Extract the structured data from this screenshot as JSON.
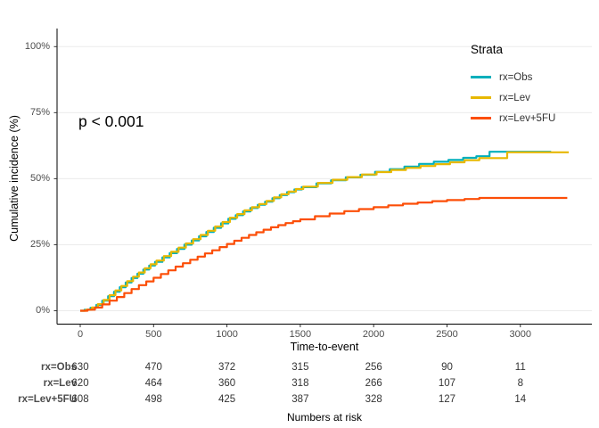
{
  "chart_data": {
    "type": "line",
    "subtype": "step-cumulative-incidence",
    "title": "",
    "xlabel": "Time-to-event",
    "ylabel": "Cumulative incidence (%)",
    "annotation": "p < 0.001",
    "legend_title": "Strata",
    "legend_position": "right",
    "grid": "horizontal-only",
    "x_ticks": [
      0,
      500,
      1000,
      1500,
      2000,
      2500,
      3000
    ],
    "y_ticks_percent": [
      0,
      25,
      50,
      75,
      100
    ],
    "y_tick_labels": [
      "0%",
      "25%",
      "50%",
      "75%",
      "100%"
    ],
    "xlim": [
      -170,
      3500
    ],
    "ylim_percent": [
      0,
      100
    ],
    "gridline_color": "#ebebeb",
    "axis_color": "#000000",
    "tick_label_color": "#4d4d4d",
    "series": [
      {
        "name": "rx=Obs",
        "color": "#00AFBB",
        "points": [
          [
            0,
            0
          ],
          [
            30,
            0.4
          ],
          [
            70,
            1.1
          ],
          [
            110,
            2.2
          ],
          [
            150,
            3.8
          ],
          [
            190,
            5.5
          ],
          [
            230,
            7.2
          ],
          [
            270,
            8.9
          ],
          [
            310,
            10.7
          ],
          [
            350,
            12.4
          ],
          [
            390,
            14
          ],
          [
            430,
            15.6
          ],
          [
            470,
            17.1
          ],
          [
            510,
            18.5
          ],
          [
            560,
            20.2
          ],
          [
            610,
            21.8
          ],
          [
            660,
            23.4
          ],
          [
            710,
            25
          ],
          [
            760,
            26.6
          ],
          [
            810,
            28.2
          ],
          [
            860,
            29.8
          ],
          [
            910,
            31.4
          ],
          [
            960,
            33.1
          ],
          [
            1010,
            34.8
          ],
          [
            1060,
            36.2
          ],
          [
            1110,
            37.6
          ],
          [
            1160,
            38.9
          ],
          [
            1210,
            40.1
          ],
          [
            1260,
            41.3
          ],
          [
            1310,
            42.6
          ],
          [
            1360,
            43.8
          ],
          [
            1410,
            44.9
          ],
          [
            1460,
            45.9
          ],
          [
            1510,
            46.8
          ],
          [
            1610,
            48.2
          ],
          [
            1710,
            49.4
          ],
          [
            1810,
            50.5
          ],
          [
            1910,
            51.5
          ],
          [
            2010,
            52.6
          ],
          [
            2110,
            53.6
          ],
          [
            2210,
            54.6
          ],
          [
            2310,
            55.6
          ],
          [
            2410,
            56.4
          ],
          [
            2510,
            57.1
          ],
          [
            2610,
            57.9
          ],
          [
            2700,
            58.5
          ],
          [
            2790,
            60.2
          ],
          [
            3210,
            60.2
          ]
        ]
      },
      {
        "name": "rx=Lev",
        "color": "#E7B800",
        "points": [
          [
            0,
            0
          ],
          [
            40,
            0.4
          ],
          [
            80,
            1.2
          ],
          [
            120,
            2.5
          ],
          [
            160,
            4.1
          ],
          [
            200,
            5.9
          ],
          [
            240,
            7.7
          ],
          [
            280,
            9.4
          ],
          [
            320,
            11.2
          ],
          [
            360,
            12.9
          ],
          [
            400,
            14.5
          ],
          [
            440,
            16.1
          ],
          [
            480,
            17.6
          ],
          [
            520,
            19
          ],
          [
            570,
            20.7
          ],
          [
            620,
            22.3
          ],
          [
            670,
            23.9
          ],
          [
            720,
            25.5
          ],
          [
            770,
            27.1
          ],
          [
            820,
            28.7
          ],
          [
            870,
            30.3
          ],
          [
            920,
            31.9
          ],
          [
            970,
            33.6
          ],
          [
            1020,
            35.2
          ],
          [
            1070,
            36.6
          ],
          [
            1120,
            38
          ],
          [
            1170,
            39.2
          ],
          [
            1220,
            40.4
          ],
          [
            1270,
            41.6
          ],
          [
            1320,
            42.9
          ],
          [
            1370,
            44.1
          ],
          [
            1420,
            45.1
          ],
          [
            1470,
            46.1
          ],
          [
            1520,
            47
          ],
          [
            1620,
            48.4
          ],
          [
            1720,
            49.6
          ],
          [
            1820,
            50.6
          ],
          [
            1920,
            51.6
          ],
          [
            2020,
            52.5
          ],
          [
            2120,
            53.3
          ],
          [
            2220,
            54.1
          ],
          [
            2320,
            54.8
          ],
          [
            2420,
            55.5
          ],
          [
            2520,
            56.2
          ],
          [
            2620,
            57
          ],
          [
            2720,
            57.8
          ],
          [
            2910,
            60
          ],
          [
            3330,
            60
          ]
        ]
      },
      {
        "name": "rx=Lev+5FU",
        "color": "#FC4E07",
        "points": [
          [
            0,
            0
          ],
          [
            50,
            0.4
          ],
          [
            100,
            1.2
          ],
          [
            150,
            2.4
          ],
          [
            200,
            3.8
          ],
          [
            250,
            5.2
          ],
          [
            300,
            6.7
          ],
          [
            350,
            8.2
          ],
          [
            400,
            9.7
          ],
          [
            450,
            11.1
          ],
          [
            500,
            12.5
          ],
          [
            550,
            13.9
          ],
          [
            600,
            15.3
          ],
          [
            650,
            16.7
          ],
          [
            700,
            18
          ],
          [
            750,
            19.3
          ],
          [
            800,
            20.5
          ],
          [
            850,
            21.7
          ],
          [
            900,
            22.9
          ],
          [
            950,
            24.1
          ],
          [
            1000,
            25.3
          ],
          [
            1050,
            26.5
          ],
          [
            1100,
            27.6
          ],
          [
            1150,
            28.7
          ],
          [
            1200,
            29.7
          ],
          [
            1250,
            30.7
          ],
          [
            1300,
            31.6
          ],
          [
            1350,
            32.4
          ],
          [
            1400,
            33.2
          ],
          [
            1450,
            33.9
          ],
          [
            1500,
            34.6
          ],
          [
            1600,
            35.8
          ],
          [
            1700,
            36.8
          ],
          [
            1800,
            37.7
          ],
          [
            1900,
            38.5
          ],
          [
            2000,
            39.2
          ],
          [
            2100,
            39.9
          ],
          [
            2200,
            40.5
          ],
          [
            2300,
            41
          ],
          [
            2400,
            41.5
          ],
          [
            2500,
            41.9
          ],
          [
            2620,
            42.3
          ],
          [
            2720,
            42.7
          ],
          [
            3320,
            42.7
          ]
        ]
      }
    ]
  },
  "risk_table": {
    "title": "Numbers at risk",
    "times": [
      0,
      500,
      1000,
      1500,
      2000,
      2500,
      3000
    ],
    "rows": [
      {
        "label": "rx=Obs",
        "values": [
          630,
          470,
          372,
          315,
          256,
          90,
          11
        ]
      },
      {
        "label": "rx=Lev",
        "values": [
          620,
          464,
          360,
          318,
          266,
          107,
          8
        ]
      },
      {
        "label": "rx=Lev+5FU",
        "values": [
          608,
          498,
          425,
          387,
          328,
          127,
          14
        ]
      }
    ]
  }
}
